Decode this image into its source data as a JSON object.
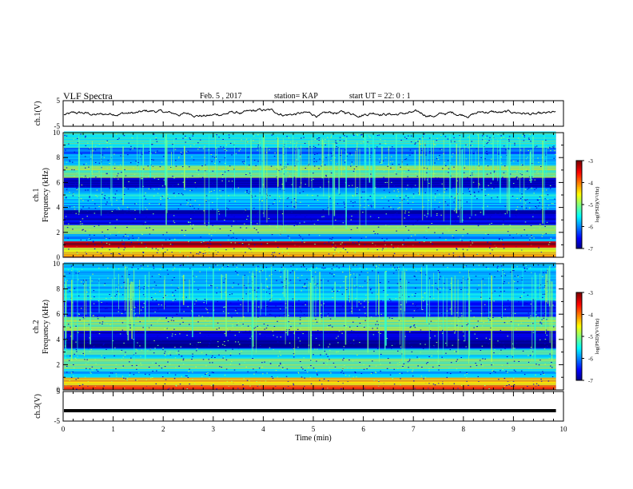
{
  "header": {
    "title": "VLF Spectra",
    "date": "Feb. 5 , 2017",
    "station": "station= KAP",
    "start": "start UT = 22: 0 : 1"
  },
  "chart_data": [
    {
      "type": "line",
      "id": "ch1-waveform",
      "ylabel": "ch.1(V)",
      "ylim": [
        -5,
        5
      ],
      "yticklabels": [
        "5",
        "-5"
      ],
      "xlim": [
        0,
        10
      ],
      "series": [
        {
          "color": "#000000",
          "samples_description": "noisy trace near -1 to +1 V across 0–9.85 min"
        }
      ]
    },
    {
      "type": "heatmap",
      "id": "ch1-spectrogram",
      "ylabel": "ch.1\nFrequency (kHz)",
      "ylim": [
        0,
        10
      ],
      "yticklabels": [
        "0",
        "2",
        "4",
        "6",
        "8",
        "10"
      ],
      "xlim": [
        0,
        10
      ],
      "data_extent_min": 9.85,
      "colorbar": {
        "label": "log(PSD)(V²/Hz)",
        "range": [
          -7,
          -3
        ],
        "ticklabels": [
          "-3",
          "-4",
          "-5",
          "-6",
          "-7"
        ]
      },
      "bands_khz": [
        {
          "f": 0.15,
          "level": -4.2
        },
        {
          "f": 0.5,
          "level": -4.6
        },
        {
          "f": 0.9,
          "level": -3.3
        },
        {
          "f": 1.5,
          "level": -5.8
        },
        {
          "f": 2.2,
          "level": -4.8
        },
        {
          "f": 2.9,
          "level": -6.6
        },
        {
          "f": 3.3,
          "level": -6.8
        },
        {
          "f": 4.2,
          "level": -5.8
        },
        {
          "f": 5.0,
          "level": -5.6
        },
        {
          "f": 6.0,
          "level": -6.8
        },
        {
          "f": 6.6,
          "level": -5.0
        },
        {
          "f": 8.0,
          "level": -5.9
        },
        {
          "f": 9.5,
          "level": -5.3
        }
      ]
    },
    {
      "type": "heatmap",
      "id": "ch2-spectrogram",
      "ylabel": "ch.2\nFrequency (kHz)",
      "ylim": [
        0,
        10
      ],
      "yticklabels": [
        "0",
        "2",
        "4",
        "6",
        "8",
        "10"
      ],
      "xlim": [
        0,
        10
      ],
      "data_extent_min": 9.85,
      "colorbar": {
        "label": "log(PSD)(V²/Hz)",
        "range": [
          -7,
          -3
        ],
        "ticklabels": [
          "-3",
          "-4",
          "-5",
          "-6",
          "-7"
        ]
      },
      "bands_khz": [
        {
          "f": 0.2,
          "level": -3.8
        },
        {
          "f": 0.6,
          "level": -4.4
        },
        {
          "f": 1.2,
          "level": -5.6
        },
        {
          "f": 2.1,
          "level": -5.0
        },
        {
          "f": 2.8,
          "level": -5.4
        },
        {
          "f": 3.7,
          "level": -6.9
        },
        {
          "f": 4.1,
          "level": -6.8
        },
        {
          "f": 5.2,
          "level": -4.9
        },
        {
          "f": 6.3,
          "level": -6.4
        },
        {
          "f": 7.7,
          "level": -5.6
        },
        {
          "f": 9.0,
          "level": -5.6
        }
      ]
    },
    {
      "type": "line",
      "id": "ch3-waveform",
      "ylabel": "ch.3(V)",
      "ylim": [
        -5,
        5
      ],
      "yticklabels": [
        "5",
        "-5"
      ],
      "xlim": [
        0,
        10
      ],
      "xlabel": "Time (min)",
      "xticklabels": [
        "0",
        "1",
        "2",
        "3",
        "4",
        "5",
        "6",
        "7",
        "8",
        "9",
        "10"
      ],
      "series": [
        {
          "color": "#000000",
          "constant_value": -1.5,
          "x_end": 9.85
        }
      ]
    }
  ]
}
